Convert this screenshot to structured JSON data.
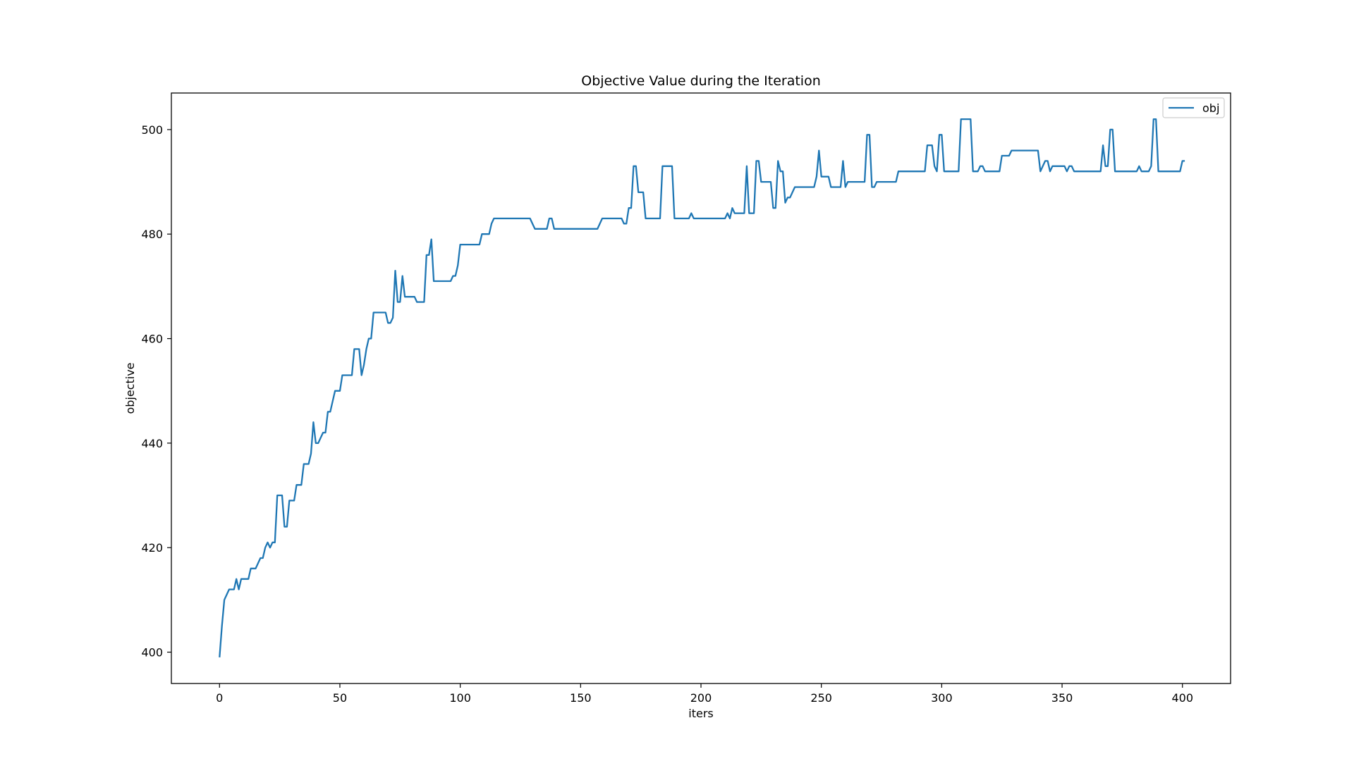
{
  "chart_data": {
    "type": "line",
    "title": "Objective Value during the Iteration",
    "xlabel": "iters",
    "ylabel": "objective",
    "xlim": [
      -20,
      420
    ],
    "ylim": [
      394,
      507
    ],
    "xticks": [
      0,
      50,
      100,
      150,
      200,
      250,
      300,
      350,
      400
    ],
    "yticks": [
      400,
      420,
      440,
      460,
      480,
      500
    ],
    "grid": false,
    "legend_position": "top-right",
    "series": [
      {
        "name": "obj",
        "color": "#1f77b4",
        "points": [
          [
            0,
            399
          ],
          [
            1,
            405
          ],
          [
            2,
            410
          ],
          [
            3,
            411
          ],
          [
            4,
            412
          ],
          [
            6,
            412
          ],
          [
            7,
            414
          ],
          [
            8,
            412
          ],
          [
            9,
            414
          ],
          [
            12,
            414
          ],
          [
            13,
            416
          ],
          [
            15,
            416
          ],
          [
            16,
            417
          ],
          [
            17,
            418
          ],
          [
            18,
            418
          ],
          [
            19,
            420
          ],
          [
            20,
            421
          ],
          [
            21,
            420
          ],
          [
            22,
            421
          ],
          [
            23,
            421
          ],
          [
            24,
            430
          ],
          [
            26,
            430
          ],
          [
            27,
            424
          ],
          [
            28,
            424
          ],
          [
            29,
            429
          ],
          [
            31,
            429
          ],
          [
            32,
            432
          ],
          [
            34,
            432
          ],
          [
            35,
            436
          ],
          [
            37,
            436
          ],
          [
            38,
            438
          ],
          [
            39,
            444
          ],
          [
            40,
            440
          ],
          [
            41,
            440
          ],
          [
            42,
            441
          ],
          [
            43,
            442
          ],
          [
            44,
            442
          ],
          [
            45,
            446
          ],
          [
            46,
            446
          ],
          [
            47,
            448
          ],
          [
            48,
            450
          ],
          [
            50,
            450
          ],
          [
            51,
            453
          ],
          [
            55,
            453
          ],
          [
            56,
            458
          ],
          [
            58,
            458
          ],
          [
            59,
            453
          ],
          [
            60,
            455
          ],
          [
            61,
            458
          ],
          [
            62,
            460
          ],
          [
            63,
            460
          ],
          [
            64,
            465
          ],
          [
            69,
            465
          ],
          [
            70,
            463
          ],
          [
            71,
            463
          ],
          [
            72,
            464
          ],
          [
            73,
            473
          ],
          [
            74,
            467
          ],
          [
            75,
            467
          ],
          [
            76,
            472
          ],
          [
            77,
            468
          ],
          [
            81,
            468
          ],
          [
            82,
            467
          ],
          [
            85,
            467
          ],
          [
            86,
            476
          ],
          [
            87,
            476
          ],
          [
            88,
            479
          ],
          [
            89,
            471
          ],
          [
            96,
            471
          ],
          [
            97,
            472
          ],
          [
            98,
            472
          ],
          [
            99,
            474
          ],
          [
            100,
            478
          ],
          [
            108,
            478
          ],
          [
            109,
            480
          ],
          [
            112,
            480
          ],
          [
            113,
            482
          ],
          [
            114,
            483
          ],
          [
            129,
            483
          ],
          [
            130,
            482
          ],
          [
            131,
            481
          ],
          [
            136,
            481
          ],
          [
            137,
            483
          ],
          [
            138,
            483
          ],
          [
            139,
            481
          ],
          [
            157,
            481
          ],
          [
            158,
            482
          ],
          [
            159,
            483
          ],
          [
            167,
            483
          ],
          [
            168,
            482
          ],
          [
            169,
            482
          ],
          [
            170,
            485
          ],
          [
            171,
            485
          ],
          [
            172,
            493
          ],
          [
            173,
            493
          ],
          [
            174,
            488
          ],
          [
            176,
            488
          ],
          [
            177,
            483
          ],
          [
            183,
            483
          ],
          [
            184,
            493
          ],
          [
            188,
            493
          ],
          [
            189,
            483
          ],
          [
            195,
            483
          ],
          [
            196,
            484
          ],
          [
            197,
            483
          ],
          [
            210,
            483
          ],
          [
            211,
            484
          ],
          [
            212,
            483
          ],
          [
            213,
            485
          ],
          [
            214,
            484
          ],
          [
            218,
            484
          ],
          [
            219,
            493
          ],
          [
            220,
            484
          ],
          [
            222,
            484
          ],
          [
            223,
            494
          ],
          [
            224,
            494
          ],
          [
            225,
            490
          ],
          [
            229,
            490
          ],
          [
            230,
            485
          ],
          [
            231,
            485
          ],
          [
            232,
            494
          ],
          [
            233,
            492
          ],
          [
            234,
            492
          ],
          [
            235,
            486
          ],
          [
            236,
            487
          ],
          [
            237,
            487
          ],
          [
            238,
            488
          ],
          [
            239,
            489
          ],
          [
            247,
            489
          ],
          [
            248,
            491
          ],
          [
            249,
            496
          ],
          [
            250,
            491
          ],
          [
            253,
            491
          ],
          [
            254,
            489
          ],
          [
            258,
            489
          ],
          [
            259,
            494
          ],
          [
            260,
            489
          ],
          [
            261,
            490
          ],
          [
            268,
            490
          ],
          [
            269,
            499
          ],
          [
            270,
            499
          ],
          [
            271,
            489
          ],
          [
            272,
            489
          ],
          [
            273,
            490
          ],
          [
            281,
            490
          ],
          [
            282,
            492
          ],
          [
            293,
            492
          ],
          [
            294,
            497
          ],
          [
            296,
            497
          ],
          [
            297,
            493
          ],
          [
            298,
            492
          ],
          [
            299,
            499
          ],
          [
            300,
            499
          ],
          [
            301,
            492
          ],
          [
            307,
            492
          ],
          [
            308,
            502
          ],
          [
            312,
            502
          ],
          [
            313,
            492
          ],
          [
            315,
            492
          ],
          [
            316,
            493
          ],
          [
            317,
            493
          ],
          [
            318,
            492
          ],
          [
            324,
            492
          ],
          [
            325,
            495
          ],
          [
            328,
            495
          ],
          [
            329,
            496
          ],
          [
            340,
            496
          ],
          [
            341,
            492
          ],
          [
            343,
            494
          ],
          [
            344,
            494
          ],
          [
            345,
            492
          ],
          [
            346,
            493
          ],
          [
            351,
            493
          ],
          [
            352,
            492
          ],
          [
            353,
            493
          ],
          [
            354,
            493
          ],
          [
            355,
            492
          ],
          [
            366,
            492
          ],
          [
            367,
            497
          ],
          [
            368,
            493
          ],
          [
            369,
            493
          ],
          [
            370,
            500
          ],
          [
            371,
            500
          ],
          [
            372,
            492
          ],
          [
            381,
            492
          ],
          [
            382,
            493
          ],
          [
            383,
            492
          ],
          [
            386,
            492
          ],
          [
            387,
            493
          ],
          [
            388,
            502
          ],
          [
            389,
            502
          ],
          [
            390,
            492
          ],
          [
            399,
            492
          ],
          [
            400,
            494
          ],
          [
            401,
            494
          ]
        ]
      }
    ]
  }
}
